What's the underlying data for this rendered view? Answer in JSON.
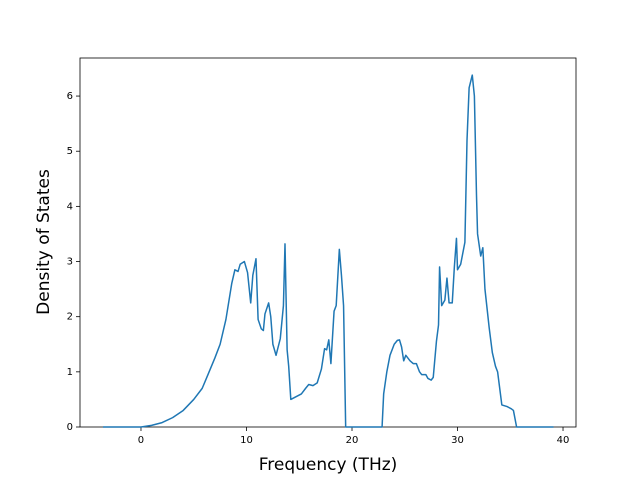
{
  "chart_data": {
    "type": "line",
    "xlabel": "Frequency (THz)",
    "ylabel": "Density of States",
    "series": [
      {
        "color": "#1f77b4",
        "x": [
          -3.6,
          0,
          1,
          2,
          3,
          4,
          5,
          5.8,
          6.35,
          7,
          7.5,
          8.05,
          8.6,
          8.9,
          9.2,
          9.4,
          9.8,
          10.1,
          10.4,
          10.6,
          10.9,
          11.1,
          11.4,
          11.6,
          11.75,
          12.1,
          12.3,
          12.5,
          12.8,
          13.2,
          13.5,
          13.65,
          13.85,
          14.0,
          14.2,
          14.7,
          15.2,
          15.6,
          15.9,
          16.3,
          16.7,
          17.1,
          17.4,
          17.6,
          17.8,
          18.0,
          18.3,
          18.5,
          18.8,
          19.0,
          19.2,
          19.4,
          22.85,
          23.0,
          23.3,
          23.6,
          24.0,
          24.3,
          24.5,
          24.7,
          24.9,
          25.1,
          25.5,
          25.8,
          26.1,
          26.4,
          26.6,
          27.0,
          27.2,
          27.5,
          27.7,
          28.0,
          28.2,
          28.3,
          28.5,
          28.8,
          29.0,
          29.2,
          29.5,
          29.7,
          29.9,
          30.0,
          30.3,
          30.7,
          30.9,
          31.1,
          31.4,
          31.6,
          31.8,
          31.9,
          32.2,
          32.4,
          32.6,
          33.0,
          33.3,
          33.6,
          33.8,
          34.2,
          34.7,
          35.1,
          35.3,
          35.6,
          39.1
        ],
        "values": [
          0,
          0,
          0.03,
          0.08,
          0.17,
          0.3,
          0.5,
          0.7,
          0.95,
          1.25,
          1.5,
          1.95,
          2.6,
          2.85,
          2.82,
          2.95,
          3.0,
          2.8,
          2.25,
          2.75,
          3.05,
          1.95,
          1.78,
          1.75,
          2.05,
          2.25,
          2.0,
          1.5,
          1.3,
          1.6,
          2.2,
          3.32,
          1.4,
          1.1,
          0.5,
          0.55,
          0.6,
          0.7,
          0.77,
          0.75,
          0.8,
          1.05,
          1.42,
          1.4,
          1.58,
          1.15,
          2.1,
          2.2,
          3.22,
          2.75,
          2.2,
          0,
          0,
          0.6,
          1.0,
          1.3,
          1.5,
          1.57,
          1.58,
          1.45,
          1.2,
          1.3,
          1.2,
          1.15,
          1.15,
          1.0,
          0.95,
          0.95,
          0.88,
          0.85,
          0.9,
          1.55,
          1.85,
          2.9,
          2.2,
          2.3,
          2.7,
          2.25,
          2.25,
          2.9,
          3.42,
          2.85,
          2.95,
          3.35,
          5.2,
          6.15,
          6.38,
          6.0,
          4.2,
          3.5,
          3.1,
          3.25,
          2.5,
          1.8,
          1.35,
          1.1,
          1.0,
          0.4,
          0.37,
          0.33,
          0.3,
          0,
          0
        ]
      }
    ],
    "xlim": [
      -5.78,
      41.23
    ],
    "ylim": [
      0,
      6.69
    ],
    "xticks": [
      0,
      10,
      20,
      30,
      40
    ],
    "yticks": [
      0,
      1,
      2,
      3,
      4,
      5,
      6
    ]
  }
}
